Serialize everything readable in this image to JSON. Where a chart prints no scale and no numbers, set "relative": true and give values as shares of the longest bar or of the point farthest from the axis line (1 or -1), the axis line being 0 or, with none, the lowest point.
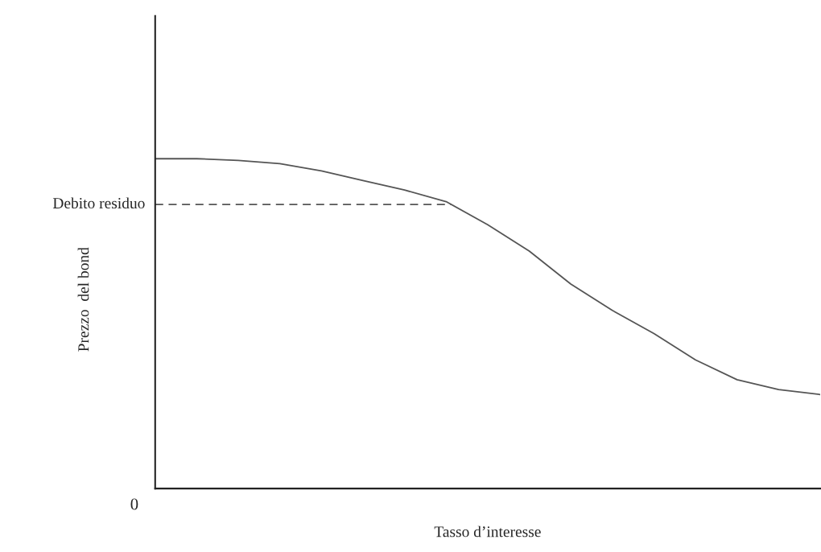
{
  "chart_data": {
    "type": "line",
    "relative": true,
    "xlabel": "Tasso d’interesse",
    "ylabel": "Prezzo  del bond",
    "categories": [
      null,
      null,
      null,
      null,
      null,
      null,
      null,
      null,
      null,
      null,
      null,
      null,
      null,
      null,
      null,
      null,
      null
    ],
    "series": [
      {
        "color": "#555555",
        "values": [
          1.0,
          1.0,
          0.995,
          0.985,
          0.963,
          0.934,
          0.905,
          0.87,
          0.8,
          0.72,
          0.62,
          0.54,
          0.47,
          0.39,
          0.33,
          0.3,
          0.285
        ]
      }
    ],
    "ref_lines": [
      {
        "axis": "y",
        "value": 0.861,
        "label": "Debito residuo",
        "color": "#555555",
        "line_style": "dashed"
      }
    ],
    "annotations": [
      "0"
    ],
    "grid": false,
    "legend": false,
    "marker": "none",
    "line_style": "solid"
  }
}
